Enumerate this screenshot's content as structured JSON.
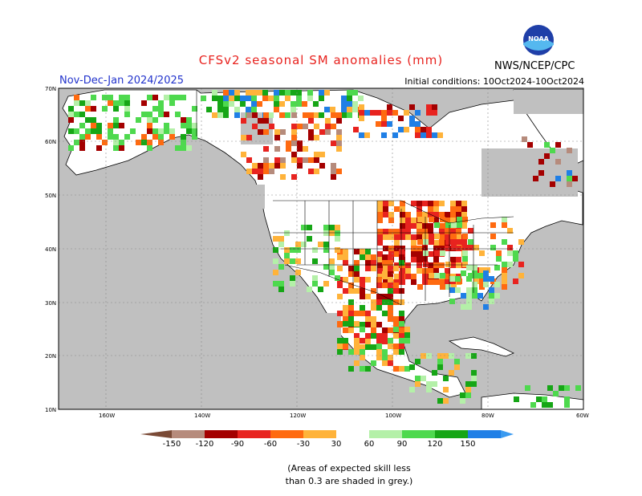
{
  "header": {
    "title": "CFSv2 seasonal SM anomalies (mm)",
    "period": "Nov-Dec-Jan 2024/2025",
    "initial_conditions": "Initial conditions: 10Oct2024-10Oct2024",
    "agency": "NWS/NCEP/CPC",
    "logo_text": "NOAA"
  },
  "map": {
    "lat_labels": [
      "70N",
      "60N",
      "50N",
      "40N",
      "30N",
      "20N",
      "10N"
    ],
    "lon_labels": [
      "160W",
      "140W",
      "120W",
      "100W",
      "80W",
      "60W"
    ],
    "colors": {
      "ocean": "#c0c0c0",
      "land_no_skill": "#c0c0c0",
      "land": "#ffffff",
      "border": "#000000"
    }
  },
  "legend": {
    "labels": [
      "-150",
      "-120",
      "-90",
      "-60",
      "-30",
      "30",
      "60",
      "90",
      "120",
      "150"
    ],
    "colors": [
      "#7a4a36",
      "#b68b7c",
      "#a40000",
      "#e8231f",
      "#ff6a10",
      "#ffb33a",
      "#ffffff",
      "#b4f0a8",
      "#4ed94e",
      "#16a616",
      "#1f7fe6",
      "#3a9af0"
    ]
  },
  "note": {
    "line1": "(Areas of expected skill less",
    "line2": "than 0.3 are shaded in grey.)"
  }
}
